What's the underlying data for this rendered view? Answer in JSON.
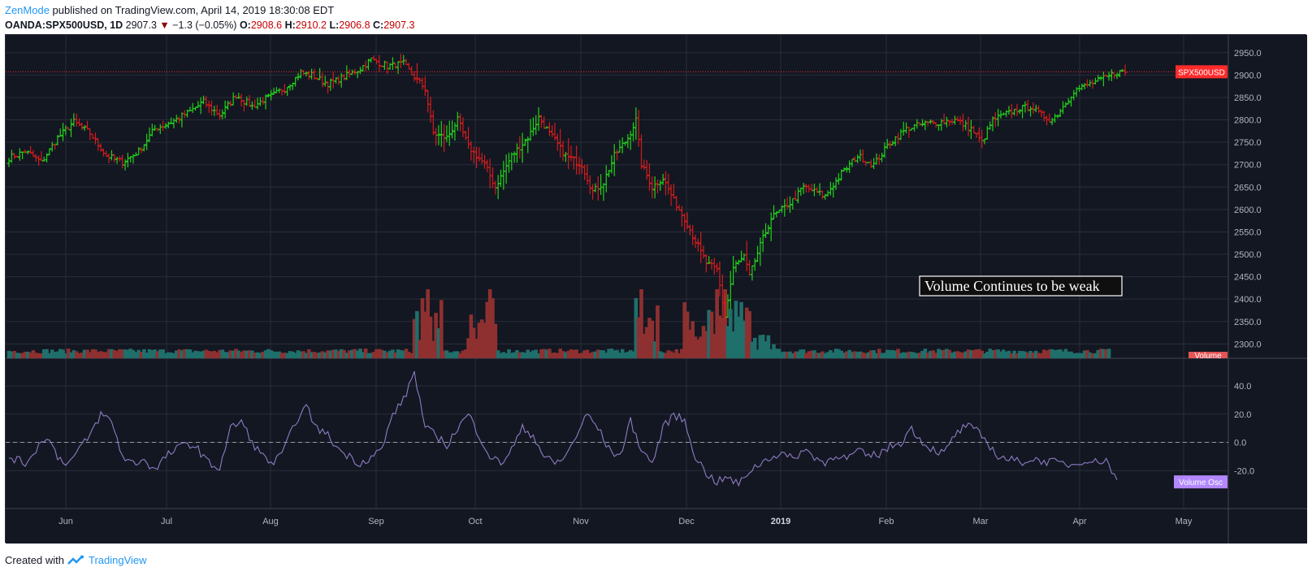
{
  "header": {
    "author": "ZenMode",
    "published": "published on TradingView.com, April 14, 2019 18:30:08 EDT"
  },
  "ohlc": {
    "symbol": "OANDA:SPX500USD, 1D",
    "last": "2907.3",
    "change": "−1.3 (−0.05%)",
    "o_label": "O:",
    "o": "2908.6",
    "h_label": "H:",
    "h": "2910.2",
    "l_label": "L:",
    "l": "2906.8",
    "c_label": "C:",
    "c": "2907.3"
  },
  "footer": {
    "created_with": "Created with",
    "brand": "TradingView"
  },
  "colors": {
    "background": "#131722",
    "grid": "#2a2e39",
    "up": "#22d11a",
    "down": "#d11c1c",
    "vol_up": "#1f6f6b",
    "vol_down": "#8e3030",
    "osc_line": "#8e7cc3",
    "price_line": "#ff2b2b"
  },
  "annotation": "Volume Continues to be weak",
  "price_tag": "SPX500USD",
  "volume_tag": "Volume",
  "osc_tag": "Volume Osc",
  "chart_data": {
    "type": "ohlc",
    "title": "OANDA:SPX500USD, 1D",
    "price_axis": {
      "ticks": [
        "2300.0",
        "2350.0",
        "2400.0",
        "2450.0",
        "2500.0",
        "2550.0",
        "2600.0",
        "2650.0",
        "2700.0",
        "2750.0",
        "2800.0",
        "2850.0",
        "2900.0",
        "2950.0"
      ],
      "range": [
        2268,
        2975
      ]
    },
    "current_price_line": 2907.3,
    "osc_axis": {
      "ticks": [
        "40.0",
        "20.0",
        "0.0",
        "-20.0"
      ],
      "range": [
        -40,
        55
      ]
    },
    "months": [
      {
        "label": "Jun",
        "bold": false
      },
      {
        "label": "Jul",
        "bold": false
      },
      {
        "label": "Aug",
        "bold": false
      },
      {
        "label": "Sep",
        "bold": false
      },
      {
        "label": "Oct",
        "bold": false
      },
      {
        "label": "Nov",
        "bold": false
      },
      {
        "label": "Dec",
        "bold": false
      },
      {
        "label": "2019",
        "bold": true
      },
      {
        "label": "Feb",
        "bold": false
      },
      {
        "label": "Mar",
        "bold": false
      },
      {
        "label": "Apr",
        "bold": false
      },
      {
        "label": "May",
        "bold": false
      }
    ],
    "close_anchors": [
      [
        0,
        2715
      ],
      [
        6,
        2730
      ],
      [
        12,
        2705
      ],
      [
        18,
        2760
      ],
      [
        24,
        2795
      ],
      [
        30,
        2770
      ],
      [
        36,
        2720
      ],
      [
        42,
        2705
      ],
      [
        48,
        2730
      ],
      [
        54,
        2780
      ],
      [
        60,
        2795
      ],
      [
        66,
        2815
      ],
      [
        72,
        2840
      ],
      [
        78,
        2810
      ],
      [
        84,
        2855
      ],
      [
        90,
        2830
      ],
      [
        96,
        2850
      ],
      [
        102,
        2870
      ],
      [
        108,
        2905
      ],
      [
        112,
        2900
      ],
      [
        118,
        2880
      ],
      [
        124,
        2895
      ],
      [
        130,
        2915
      ],
      [
        134,
        2935
      ],
      [
        140,
        2920
      ],
      [
        146,
        2925
      ],
      [
        150,
        2895
      ],
      [
        154,
        2870
      ],
      [
        157,
        2770
      ],
      [
        162,
        2760
      ],
      [
        166,
        2800
      ],
      [
        170,
        2740
      ],
      [
        176,
        2700
      ],
      [
        180,
        2650
      ],
      [
        186,
        2720
      ],
      [
        192,
        2760
      ],
      [
        196,
        2805
      ],
      [
        200,
        2770
      ],
      [
        206,
        2720
      ],
      [
        212,
        2700
      ],
      [
        216,
        2640
      ],
      [
        220,
        2660
      ],
      [
        224,
        2720
      ],
      [
        229,
        2760
      ],
      [
        232,
        2800
      ],
      [
        234,
        2700
      ],
      [
        238,
        2650
      ],
      [
        242,
        2670
      ],
      [
        246,
        2620
      ],
      [
        250,
        2580
      ],
      [
        254,
        2530
      ],
      [
        258,
        2480
      ],
      [
        262,
        2465
      ],
      [
        265,
        2360
      ],
      [
        268,
        2470
      ],
      [
        272,
        2495
      ],
      [
        274,
        2450
      ],
      [
        278,
        2520
      ],
      [
        282,
        2580
      ],
      [
        286,
        2600
      ],
      [
        290,
        2620
      ],
      [
        294,
        2650
      ],
      [
        298,
        2640
      ],
      [
        302,
        2630
      ],
      [
        308,
        2680
      ],
      [
        314,
        2720
      ],
      [
        320,
        2700
      ],
      [
        326,
        2750
      ],
      [
        332,
        2780
      ],
      [
        338,
        2790
      ],
      [
        344,
        2795
      ],
      [
        350,
        2800
      ],
      [
        356,
        2780
      ],
      [
        360,
        2750
      ],
      [
        364,
        2800
      ],
      [
        370,
        2815
      ],
      [
        374,
        2825
      ],
      [
        378,
        2830
      ],
      [
        382,
        2810
      ],
      [
        386,
        2800
      ],
      [
        390,
        2830
      ],
      [
        394,
        2865
      ],
      [
        398,
        2875
      ],
      [
        402,
        2885
      ],
      [
        406,
        2895
      ],
      [
        410,
        2907
      ]
    ],
    "volume_note": "Relative daily volume bars, spikes in Oct, Dec and late Dec",
    "osc_anchors": [
      [
        0,
        -10
      ],
      [
        6,
        -15
      ],
      [
        10,
        -5
      ],
      [
        14,
        5
      ],
      [
        18,
        -10
      ],
      [
        22,
        -15
      ],
      [
        26,
        -5
      ],
      [
        30,
        5
      ],
      [
        34,
        20
      ],
      [
        38,
        15
      ],
      [
        42,
        -10
      ],
      [
        46,
        -15
      ],
      [
        50,
        -12
      ],
      [
        54,
        -20
      ],
      [
        58,
        -10
      ],
      [
        62,
        -5
      ],
      [
        66,
        0
      ],
      [
        70,
        -5
      ],
      [
        74,
        -15
      ],
      [
        78,
        -18
      ],
      [
        82,
        10
      ],
      [
        86,
        15
      ],
      [
        90,
        0
      ],
      [
        94,
        -10
      ],
      [
        98,
        -15
      ],
      [
        102,
        -5
      ],
      [
        106,
        15
      ],
      [
        110,
        25
      ],
      [
        114,
        10
      ],
      [
        118,
        5
      ],
      [
        122,
        -5
      ],
      [
        126,
        -10
      ],
      [
        130,
        -15
      ],
      [
        134,
        -10
      ],
      [
        138,
        -5
      ],
      [
        142,
        20
      ],
      [
        146,
        30
      ],
      [
        150,
        50
      ],
      [
        154,
        10
      ],
      [
        158,
        5
      ],
      [
        162,
        -2
      ],
      [
        166,
        10
      ],
      [
        170,
        20
      ],
      [
        174,
        5
      ],
      [
        178,
        -10
      ],
      [
        182,
        -15
      ],
      [
        186,
        -5
      ],
      [
        190,
        10
      ],
      [
        194,
        5
      ],
      [
        198,
        -10
      ],
      [
        202,
        -15
      ],
      [
        206,
        -10
      ],
      [
        210,
        5
      ],
      [
        214,
        20
      ],
      [
        218,
        10
      ],
      [
        222,
        -5
      ],
      [
        226,
        -10
      ],
      [
        230,
        15
      ],
      [
        234,
        -5
      ],
      [
        238,
        -15
      ],
      [
        242,
        10
      ],
      [
        246,
        20
      ],
      [
        250,
        15
      ],
      [
        254,
        -10
      ],
      [
        258,
        -22
      ],
      [
        262,
        -28
      ],
      [
        266,
        -25
      ],
      [
        270,
        -30
      ],
      [
        274,
        -20
      ],
      [
        278,
        -15
      ],
      [
        282,
        -10
      ],
      [
        286,
        -8
      ],
      [
        290,
        -12
      ],
      [
        294,
        -5
      ],
      [
        298,
        -10
      ],
      [
        302,
        -15
      ],
      [
        306,
        -8
      ],
      [
        310,
        -12
      ],
      [
        314,
        -6
      ],
      [
        318,
        -10
      ],
      [
        322,
        -8
      ],
      [
        326,
        -3
      ],
      [
        330,
        0
      ],
      [
        334,
        10
      ],
      [
        338,
        0
      ],
      [
        342,
        -5
      ],
      [
        346,
        -8
      ],
      [
        350,
        5
      ],
      [
        354,
        12
      ],
      [
        358,
        8
      ],
      [
        362,
        0
      ],
      [
        366,
        -10
      ],
      [
        370,
        -12
      ],
      [
        374,
        -14
      ],
      [
        378,
        -12
      ],
      [
        382,
        -13
      ],
      [
        386,
        -14
      ],
      [
        390,
        -15
      ],
      [
        394,
        -16
      ],
      [
        398,
        -12
      ],
      [
        402,
        -14
      ],
      [
        406,
        -12
      ],
      [
        410,
        -28
      ]
    ]
  }
}
